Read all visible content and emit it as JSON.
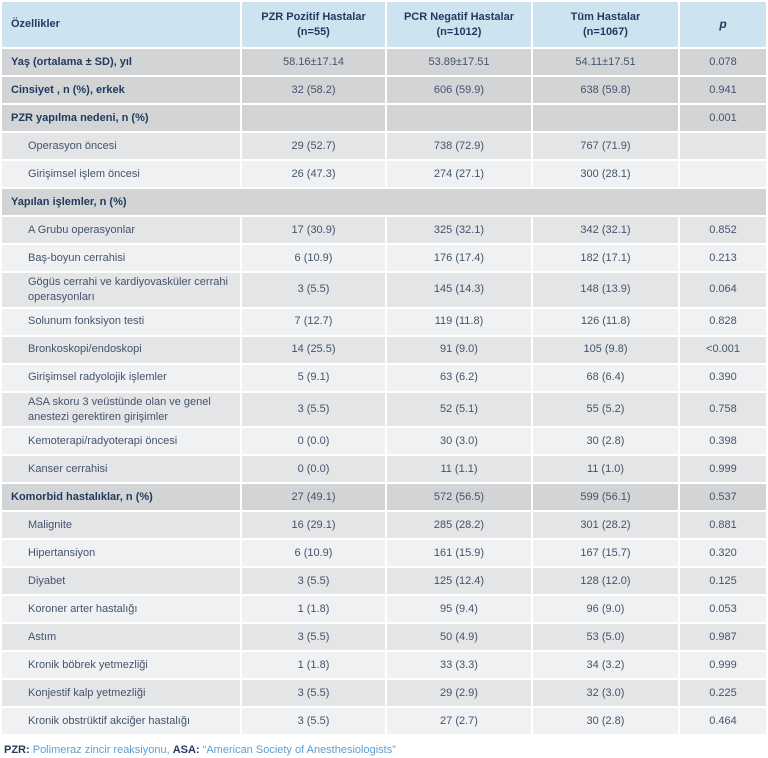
{
  "colors": {
    "header_bg": "#cde3f0",
    "section_row_bg": "#d2d4d6",
    "row_light_a": "#e3e5e7",
    "row_light_b": "#f0f1f2",
    "heading_text": "#1e3a5e",
    "body_text": "#44536d",
    "footer_accent": "#5b9fd4"
  },
  "table": {
    "columns": [
      {
        "label": "Özellikler"
      },
      {
        "label": "PZR Pozitif Hastalar",
        "n": "(n=55)"
      },
      {
        "label": "PCR Negatif  Hastalar",
        "n": "(n=1012)"
      },
      {
        "label": "Tüm Hastalar",
        "n": "(n=1067)"
      },
      {
        "label": "p",
        "italic": true
      }
    ],
    "rows": [
      {
        "label": "Yaş (ortalama ± SD), yıl",
        "bold": true,
        "indent": false,
        "shade": "dark",
        "merged": false,
        "values": [
          "58.16±17.14",
          "53.89±17.51",
          "54.11±17.51",
          "0.078"
        ]
      },
      {
        "label": "Cinsiyet , n (%), erkek",
        "bold": true,
        "indent": false,
        "shade": "dark",
        "merged": false,
        "values": [
          "32 (58.2)",
          "606 (59.9)",
          "638 (59.8)",
          "0.941"
        ]
      },
      {
        "label": "PZR yapılma nedeni, n (%)",
        "bold": true,
        "indent": false,
        "shade": "dark",
        "merged": false,
        "values": [
          "",
          "",
          "",
          "0.001"
        ]
      },
      {
        "label": "Operasyon öncesi",
        "bold": false,
        "indent": true,
        "shade": "a",
        "merged": false,
        "values": [
          "29 (52.7)",
          "738 (72.9)",
          "767 (71.9)",
          ""
        ]
      },
      {
        "label": "Girişimsel işlem öncesi",
        "bold": false,
        "indent": true,
        "shade": "b",
        "merged": false,
        "values": [
          "26 (47.3)",
          "274 (27.1)",
          "300 (28.1)",
          ""
        ]
      },
      {
        "label": "Yapılan işlemler, n (%)",
        "bold": true,
        "indent": false,
        "shade": "dark",
        "merged": true,
        "values": []
      },
      {
        "label": "A Grubu operasyonlar",
        "bold": false,
        "indent": true,
        "shade": "a",
        "merged": false,
        "values": [
          "17 (30.9)",
          "325 (32.1)",
          "342 (32.1)",
          "0.852"
        ]
      },
      {
        "label": "Baş-boyun cerrahisi",
        "bold": false,
        "indent": true,
        "shade": "b",
        "merged": false,
        "values": [
          "6 (10.9)",
          "176 (17.4)",
          "182 (17.1)",
          "0.213"
        ]
      },
      {
        "label": "Gögüs cerrahi ve kardiyovasküler cerrahi operasyonları",
        "bold": false,
        "indent": true,
        "shade": "a",
        "merged": false,
        "values": [
          "3 (5.5)",
          "145 (14.3)",
          "148 (13.9)",
          "0.064"
        ]
      },
      {
        "label": "Solunum fonksiyon testi",
        "bold": false,
        "indent": true,
        "shade": "b",
        "merged": false,
        "values": [
          "7 (12.7)",
          "119 (11.8)",
          "126 (11.8)",
          "0.828"
        ]
      },
      {
        "label": "Bronkoskopi/endoskopi",
        "bold": false,
        "indent": true,
        "shade": "a",
        "merged": false,
        "values": [
          "14 (25.5)",
          "91 (9.0)",
          "105 (9.8)",
          "<0.001"
        ]
      },
      {
        "label": "Girişimsel radyolojik işlemler",
        "bold": false,
        "indent": true,
        "shade": "b",
        "merged": false,
        "values": [
          "5 (9.1)",
          "63 (6.2)",
          "68 (6.4)",
          "0.390"
        ]
      },
      {
        "label": "ASA skoru 3 veüstünde olan ve genel anestezi gerektiren girişimler",
        "bold": false,
        "indent": true,
        "shade": "a",
        "merged": false,
        "values": [
          "3 (5.5)",
          "52 (5.1)",
          "55 (5.2)",
          "0.758"
        ]
      },
      {
        "label": "Kemoterapi/radyoterapi öncesi",
        "bold": false,
        "indent": true,
        "shade": "b",
        "merged": false,
        "values": [
          "0 (0.0)",
          "30 (3.0)",
          "30 (2.8)",
          "0.398"
        ]
      },
      {
        "label": "Kanser cerrahisi",
        "bold": false,
        "indent": true,
        "shade": "a",
        "merged": false,
        "values": [
          "0 (0.0)",
          "11 (1.1)",
          "11 (1.0)",
          "0.999"
        ]
      },
      {
        "label": "Komorbid hastalıklar, n (%)",
        "bold": true,
        "indent": false,
        "shade": "dark",
        "merged": false,
        "values": [
          "27 (49.1)",
          "572 (56.5)",
          "599 (56.1)",
          "0.537"
        ]
      },
      {
        "label": "Malignite",
        "bold": false,
        "indent": true,
        "shade": "a",
        "merged": false,
        "values": [
          "16 (29.1)",
          "285 (28.2)",
          "301 (28.2)",
          "0.881"
        ]
      },
      {
        "label": "Hipertansiyon",
        "bold": false,
        "indent": true,
        "shade": "b",
        "merged": false,
        "values": [
          "6 (10.9)",
          "161 (15.9)",
          "167 (15.7)",
          "0.320"
        ]
      },
      {
        "label": "Diyabet",
        "bold": false,
        "indent": true,
        "shade": "a",
        "merged": false,
        "values": [
          "3 (5.5)",
          "125 (12.4)",
          "128 (12.0)",
          "0.125"
        ]
      },
      {
        "label": "Koroner arter hastalığı",
        "bold": false,
        "indent": true,
        "shade": "b",
        "merged": false,
        "values": [
          "1 (1.8)",
          "95 (9.4)",
          "96 (9.0)",
          "0.053"
        ]
      },
      {
        "label": "Astım",
        "bold": false,
        "indent": true,
        "shade": "a",
        "merged": false,
        "values": [
          "3 (5.5)",
          "50 (4.9)",
          "53 (5.0)",
          "0.987"
        ]
      },
      {
        "label": "Kronik böbrek yetmezliği",
        "bold": false,
        "indent": true,
        "shade": "b",
        "merged": false,
        "values": [
          "1 (1.8)",
          "33 (3.3)",
          "34 (3.2)",
          "0.999"
        ]
      },
      {
        "label": "Konjestif kalp yetmezliği",
        "bold": false,
        "indent": true,
        "shade": "a",
        "merged": false,
        "values": [
          "3 (5.5)",
          "29 (2.9)",
          "32 (3.0)",
          "0.225"
        ]
      },
      {
        "label": "Kronik obstrüktif akciğer hastalığı",
        "bold": false,
        "indent": true,
        "shade": "b",
        "merged": false,
        "values": [
          "3 (5.5)",
          "27 (2.7)",
          "30 (2.8)",
          "0.464"
        ]
      }
    ]
  },
  "footer": {
    "segments": [
      {
        "text": "PZR:",
        "style": "bold"
      },
      {
        "text": " Polimeraz zincir reaksiyonu, ",
        "style": "light"
      },
      {
        "text": "ASA:",
        "style": "bold"
      },
      {
        "text": " “American Society of Anesthesiologists”",
        "style": "light"
      }
    ]
  }
}
